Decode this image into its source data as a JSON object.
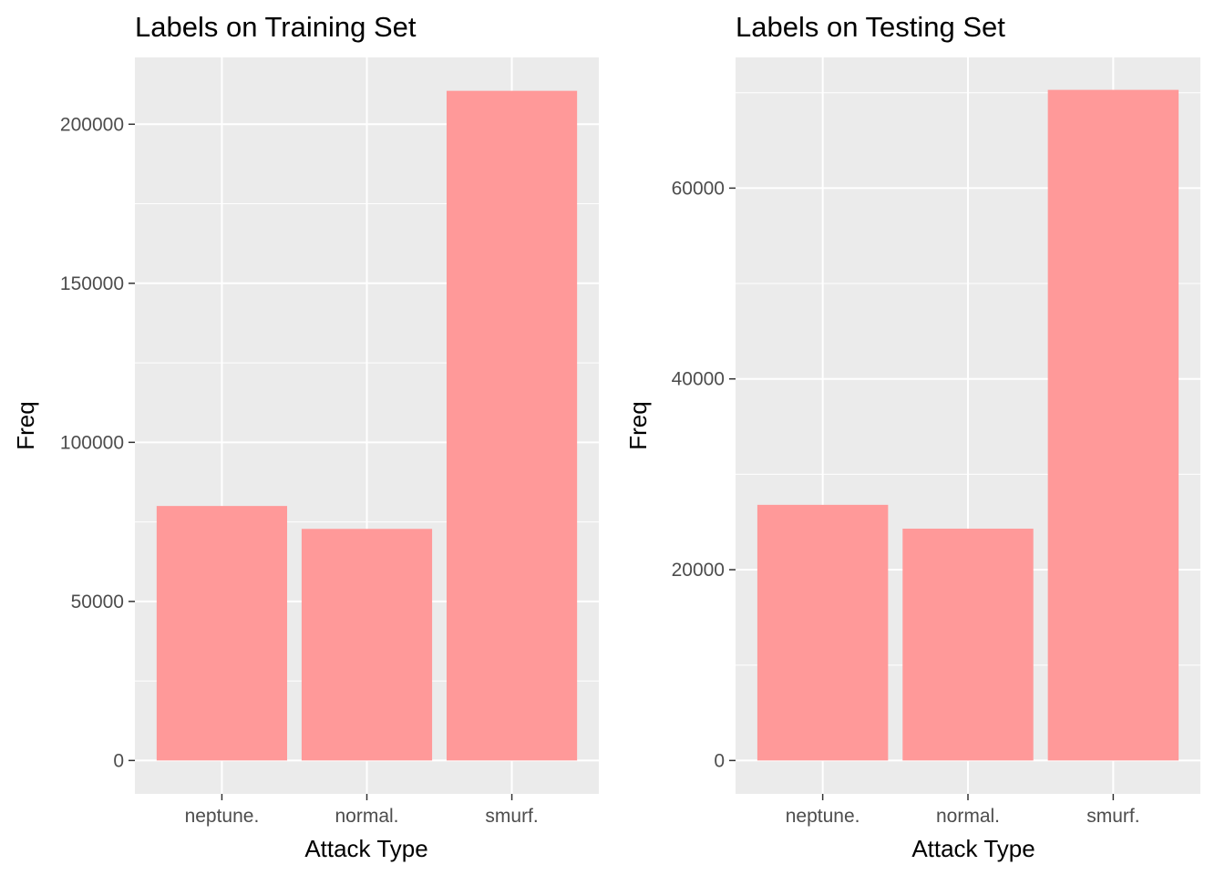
{
  "chart_data": [
    {
      "type": "bar",
      "title": "Labels on Training Set",
      "xlabel": "Attack Type",
      "ylabel": "Freq",
      "categories": [
        "neptune.",
        "normal.",
        "smurf."
      ],
      "values": [
        80000,
        72800,
        210500
      ],
      "ylim": [
        -10500,
        221000
      ],
      "yticks": [
        0,
        50000,
        100000,
        150000,
        200000
      ],
      "grid": true,
      "bar_color": "#ff9999",
      "panel_color": "#ebebeb"
    },
    {
      "type": "bar",
      "title": "Labels on Testing Set",
      "xlabel": "Attack Type",
      "ylabel": "Freq",
      "categories": [
        "neptune.",
        "normal.",
        "smurf."
      ],
      "values": [
        26800,
        24300,
        70300
      ],
      "ylim": [
        -3500,
        73700
      ],
      "yticks": [
        0,
        20000,
        40000,
        60000
      ],
      "grid": true,
      "bar_color": "#ff9999",
      "panel_color": "#ebebeb"
    }
  ]
}
